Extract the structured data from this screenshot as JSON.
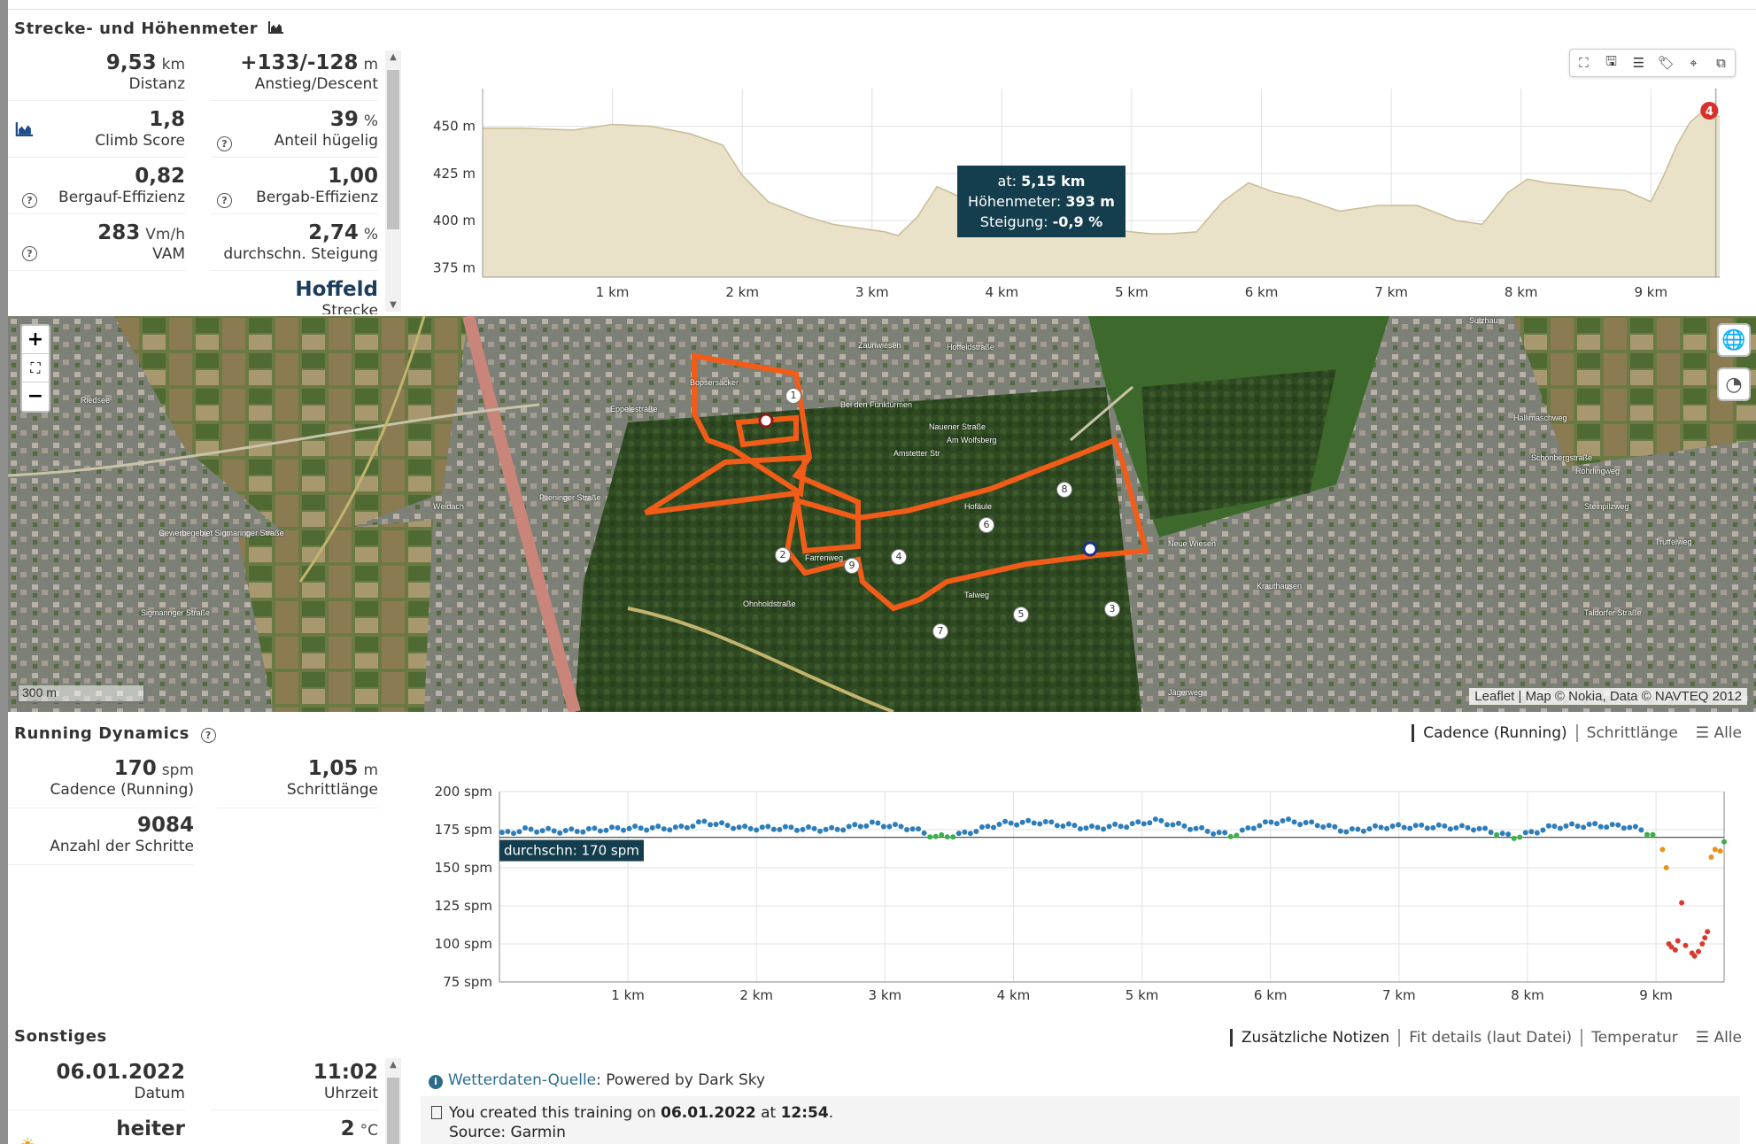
{
  "elevation": {
    "title": "Strecke- und Höhenmeter",
    "metrics": [
      {
        "value": "9,53",
        "unit": "km",
        "label": "Distanz"
      },
      {
        "value": "+133/-128",
        "unit": "m",
        "label": "Anstieg/Descent"
      },
      {
        "value": "1,8",
        "unit": "",
        "label": "Climb Score"
      },
      {
        "value": "39",
        "unit": "%",
        "label": "Anteil hügelig"
      },
      {
        "value": "0,82",
        "unit": "",
        "label": "Bergauf-Effizienz"
      },
      {
        "value": "1,00",
        "unit": "",
        "label": "Bergab-Effizienz"
      },
      {
        "value": "283",
        "unit": "Vm/h",
        "label": "VAM"
      },
      {
        "value": "2,74",
        "unit": "%",
        "label": "durchschn. Steigung"
      },
      {
        "value": "Hoffeld",
        "unit": "",
        "label": "Strecke"
      }
    ],
    "tooltip": {
      "at_label": "at:",
      "at_value": "5,15 km",
      "hm_label": "Höhenmeter:",
      "hm_value": "393 m",
      "st_label": "Steigung:",
      "st_value": "-0,9 %"
    },
    "marker_badge": "4",
    "chart_data": {
      "type": "area",
      "xlabel": "",
      "ylabel": "",
      "x_ticks": [
        "1 km",
        "2 km",
        "3 km",
        "4 km",
        "5 km",
        "6 km",
        "7 km",
        "8 km",
        "9 km"
      ],
      "y_ticks": [
        "375 m",
        "400 m",
        "425 m",
        "450 m"
      ],
      "xlim": [
        0,
        9.53
      ],
      "ylim": [
        370,
        470
      ],
      "x": [
        0,
        0.3,
        0.7,
        1.0,
        1.3,
        1.6,
        1.85,
        2.0,
        2.2,
        2.5,
        2.7,
        2.9,
        3.1,
        3.2,
        3.35,
        3.5,
        3.7,
        3.9,
        4.2,
        4.5,
        4.8,
        5.0,
        5.15,
        5.3,
        5.5,
        5.7,
        5.9,
        6.1,
        6.3,
        6.6,
        6.9,
        7.2,
        7.5,
        7.7,
        7.9,
        8.05,
        8.2,
        8.5,
        8.8,
        9.0,
        9.1,
        9.2,
        9.3,
        9.4,
        9.53
      ],
      "values": [
        449,
        449,
        448,
        451,
        450,
        446,
        440,
        424,
        410,
        402,
        398,
        396,
        394,
        392,
        402,
        418,
        412,
        400,
        396,
        396,
        396,
        394,
        393,
        393,
        394,
        410,
        420,
        415,
        412,
        405,
        408,
        408,
        400,
        398,
        415,
        422,
        420,
        418,
        416,
        410,
        424,
        440,
        452,
        458,
        455
      ]
    }
  },
  "map": {
    "attribution": "Leaflet | Map © Nokia, Data © NAVTEQ 2012",
    "scale": "300 m",
    "zoom_in": "+",
    "zoom_out": "−",
    "fullscreen": "⛶",
    "labels": [
      "Bopsersäcker",
      "Zaunwiesen",
      "Hoffeldstraße",
      "Eppelestraße",
      "Amstetter Str",
      "Weidach",
      "Ohnholdstraße",
      "Talweg",
      "Neue Wiesen",
      "Krauthausen",
      "Sigmaringer Straße",
      "Riedsee",
      "Gewerbegebiet Sigmaringer Straße",
      "Hallimaschweg",
      "Schönbergstraße",
      "Rohrlingweg",
      "Steinpilzweg",
      "Trüffelweg",
      "Taldorfer Straße",
      "Sulzhau",
      "Jägerweg",
      "Bei den Funktürmen",
      "Nauener Straße",
      "Am Wolfsberg",
      "Hofäule",
      "Farrenweg",
      "Plieninger Straße"
    ],
    "route_markers": [
      "1",
      "2",
      "3",
      "4",
      "5",
      "6",
      "7",
      "8",
      "9"
    ]
  },
  "running": {
    "title": "Running Dynamics",
    "tabs": [
      "Cadence (Running)",
      "Schrittlänge",
      "Alle"
    ],
    "metrics": [
      {
        "value": "170",
        "unit": "spm",
        "label": "Cadence (Running)"
      },
      {
        "value": "1,05",
        "unit": "m",
        "label": "Schrittlänge"
      },
      {
        "value": "9084",
        "unit": "",
        "label": "Anzahl der Schritte"
      }
    ],
    "avg_label": "durchschn: 170 spm",
    "chart_data": {
      "type": "scatter",
      "xlabel": "",
      "ylabel": "",
      "x_ticks": [
        "1 km",
        "2 km",
        "3 km",
        "4 km",
        "5 km",
        "6 km",
        "7 km",
        "8 km",
        "9 km"
      ],
      "y_ticks": [
        "75 spm",
        "100 spm",
        "125 spm",
        "150 spm",
        "175 spm",
        "200 spm"
      ],
      "xlim": [
        0,
        9.53
      ],
      "ylim": [
        75,
        200
      ],
      "average": 170,
      "colors": {
        "high": "#2e7dbb",
        "mid": "#3cae4a",
        "low": "#e6931b",
        "vlow": "#d93a2f"
      },
      "anchors_x": [
        0,
        0.2,
        0.5,
        1.0,
        1.4,
        1.6,
        1.9,
        2.2,
        2.6,
        2.9,
        3.2,
        3.4,
        3.6,
        3.9,
        4.2,
        4.6,
        4.9,
        5.1,
        5.4,
        5.7,
        5.9,
        6.1,
        6.4,
        6.6,
        6.9,
        7.3,
        7.6,
        7.9,
        8.2,
        8.5,
        8.8,
        9.0
      ],
      "anchors_y": [
        172,
        175,
        174,
        176,
        176,
        180,
        176,
        176,
        175,
        179,
        176,
        170,
        172,
        179,
        180,
        176,
        178,
        181,
        176,
        171,
        178,
        181,
        178,
        174,
        177,
        177,
        176,
        170,
        177,
        178,
        177,
        171
      ],
      "tail_x": [
        9.05,
        9.08,
        9.1,
        9.12,
        9.15,
        9.17,
        9.2,
        9.23,
        9.28,
        9.3,
        9.33,
        9.36,
        9.38,
        9.4,
        9.43,
        9.46,
        9.5,
        9.53
      ],
      "tail_y": [
        162,
        150,
        100,
        98,
        96,
        102,
        127,
        99,
        94,
        92,
        95,
        100,
        104,
        108,
        157,
        162,
        161,
        167
      ]
    }
  },
  "misc": {
    "title": "Sonstiges",
    "tabs": [
      "Zusätzliche Notizen",
      "Fit details (laut Datei)",
      "Temperatur",
      "Alle"
    ],
    "metrics": [
      {
        "value": "06.01.2022",
        "unit": "",
        "label": "Datum"
      },
      {
        "value": "11:02",
        "unit": "",
        "label": "Uhrzeit"
      },
      {
        "value": "heiter",
        "unit": "",
        "label": ""
      },
      {
        "value": "2",
        "unit": "°C",
        "label": ""
      }
    ],
    "weather_link": "Wetterdaten-Quelle",
    "weather_text": ": Powered by Dark Sky",
    "created_pre": "You created this training on ",
    "created_date": "06.01.2022",
    "created_mid": " at ",
    "created_time": "12:54",
    "created_post": ".",
    "source": "Source: Garmin"
  }
}
